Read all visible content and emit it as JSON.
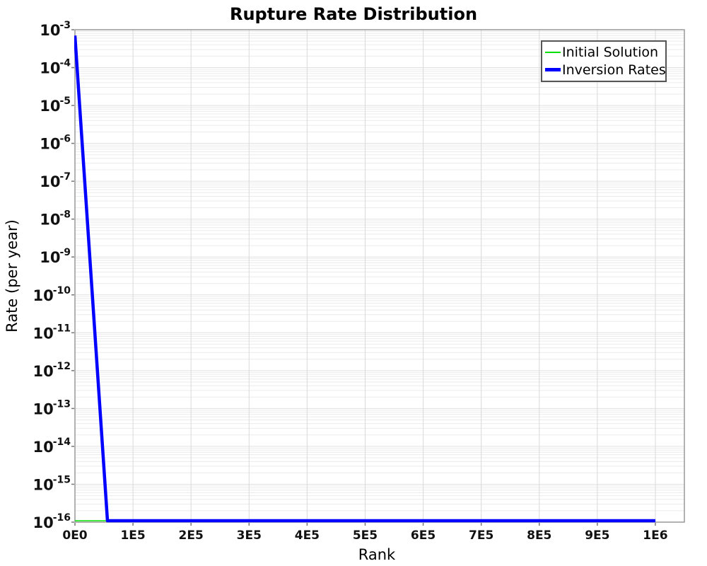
{
  "chart_data": {
    "type": "line",
    "title": "Rupture Rate Distribution",
    "xlabel": "Rank",
    "ylabel": "Rate (per year)",
    "x_scale": "linear",
    "y_scale": "log",
    "xlim": [
      0,
      1050000
    ],
    "log_ylim": [
      -16,
      -3
    ],
    "x_ticks": [
      0,
      100000,
      200000,
      300000,
      400000,
      500000,
      600000,
      700000,
      800000,
      900000,
      1000000
    ],
    "x_tick_labels": [
      "0E0",
      "1E5",
      "2E5",
      "3E5",
      "4E5",
      "5E5",
      "6E5",
      "7E5",
      "8E5",
      "9E5",
      "1E6"
    ],
    "y_tick_exponents": [
      -3,
      -4,
      -5,
      -6,
      -7,
      -8,
      -9,
      -10,
      -11,
      -12,
      -13,
      -14,
      -15,
      -16
    ],
    "grid": {
      "horizontal_major": true,
      "horizontal_minor": true,
      "vertical_major": true
    },
    "legend_position": "top-right",
    "series": [
      {
        "name": "Initial Solution",
        "color": "#00e000",
        "width": 1.5,
        "points": [
          [
            0,
            1e-16
          ],
          [
            1000000,
            1e-16
          ]
        ]
      },
      {
        "name": "Inversion Rates",
        "color": "#0000ff",
        "width": 4.5,
        "points": [
          [
            0,
            0.0007
          ],
          [
            56000,
            1e-16
          ],
          [
            1000000,
            1e-16
          ]
        ]
      }
    ]
  }
}
